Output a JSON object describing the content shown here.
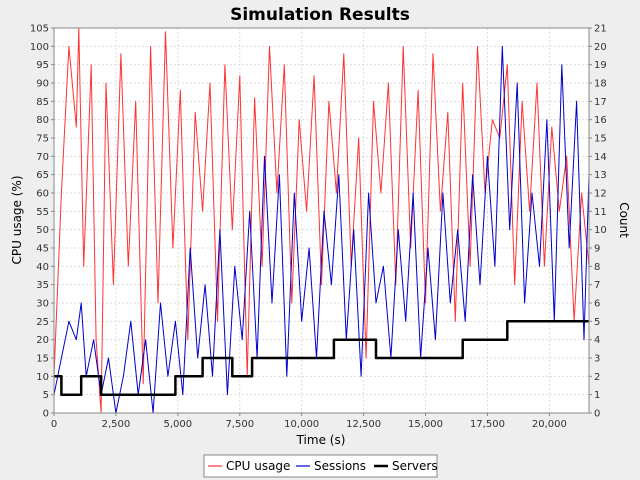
{
  "chart_data": {
    "type": "line",
    "title": "Simulation Results",
    "xlabel": "Time (s)",
    "ylabel": "CPU usage (%)",
    "y2label": "Count",
    "xlim": [
      0,
      21600
    ],
    "ylim": [
      0,
      105
    ],
    "y2lim": [
      0,
      21
    ],
    "x_ticks": [
      "0",
      "2,500",
      "5,000",
      "7,500",
      "10,000",
      "12,500",
      "15,000",
      "17,500",
      "20,000"
    ],
    "y_ticks": [
      "0",
      "5",
      "10",
      "15",
      "20",
      "25",
      "30",
      "35",
      "40",
      "45",
      "50",
      "55",
      "60",
      "65",
      "70",
      "75",
      "80",
      "85",
      "90",
      "95",
      "100",
      "105"
    ],
    "y2_ticks": [
      "0",
      "1",
      "2",
      "3",
      "4",
      "5",
      "6",
      "7",
      "8",
      "9",
      "10",
      "11",
      "12",
      "13",
      "14",
      "15",
      "16",
      "17",
      "18",
      "19",
      "20",
      "21"
    ],
    "legend_position": "bottom",
    "series": [
      {
        "name": "CPU usage",
        "axis": "left",
        "color": "#ff3333",
        "x": [
          0,
          300,
          600,
          900,
          1000,
          1200,
          1500,
          1700,
          1900,
          2100,
          2400,
          2700,
          3000,
          3300,
          3600,
          3900,
          4200,
          4500,
          4800,
          5100,
          5400,
          5700,
          6000,
          6300,
          6600,
          6900,
          7200,
          7500,
          7800,
          8100,
          8400,
          8700,
          9000,
          9300,
          9600,
          9900,
          10200,
          10500,
          10800,
          11100,
          11400,
          11700,
          12000,
          12300,
          12600,
          12900,
          13200,
          13500,
          13800,
          14100,
          14400,
          14700,
          15000,
          15300,
          15600,
          15900,
          16200,
          16500,
          16800,
          17100,
          17400,
          17700,
          18000,
          18300,
          18600,
          18900,
          19200,
          19500,
          19800,
          20100,
          20400,
          20700,
          21000,
          21300,
          21600
        ],
        "values": [
          10,
          60,
          100,
          78,
          105,
          40,
          95,
          20,
          0,
          90,
          35,
          98,
          40,
          85,
          8,
          100,
          30,
          104,
          45,
          88,
          20,
          82,
          55,
          90,
          25,
          95,
          50,
          92,
          10,
          86,
          40,
          100,
          60,
          95,
          30,
          80,
          55,
          92,
          35,
          85,
          60,
          98,
          40,
          75,
          15,
          85,
          60,
          90,
          35,
          100,
          45,
          88,
          30,
          98,
          55,
          82,
          25,
          90,
          40,
          100,
          60,
          80,
          75,
          95,
          35,
          85,
          55,
          90,
          40,
          78,
          55,
          70,
          25,
          60,
          40
        ]
      },
      {
        "name": "Sessions",
        "axis": "right",
        "color": "#0000cc",
        "x": [
          0,
          300,
          600,
          900,
          1100,
          1300,
          1600,
          1900,
          2200,
          2500,
          2800,
          3100,
          3400,
          3700,
          4000,
          4300,
          4600,
          4900,
          5200,
          5500,
          5800,
          6100,
          6400,
          6700,
          7000,
          7300,
          7600,
          7900,
          8200,
          8500,
          8800,
          9100,
          9400,
          9700,
          10000,
          10300,
          10600,
          10900,
          11200,
          11500,
          11800,
          12100,
          12400,
          12700,
          13000,
          13300,
          13600,
          13900,
          14200,
          14500,
          14800,
          15100,
          15400,
          15700,
          16000,
          16300,
          16600,
          16900,
          17200,
          17500,
          17800,
          18100,
          18400,
          18700,
          19000,
          19300,
          19600,
          19900,
          20200,
          20500,
          20800,
          21100,
          21400,
          21600
        ],
        "values": [
          1,
          3,
          5,
          4,
          6,
          2,
          4,
          1,
          3,
          0,
          2,
          5,
          1,
          4,
          0,
          6,
          2,
          5,
          1,
          9,
          3,
          7,
          2,
          10,
          1,
          8,
          4,
          11,
          3,
          14,
          6,
          13,
          2,
          12,
          5,
          9,
          3,
          11,
          7,
          13,
          4,
          10,
          2,
          12,
          6,
          8,
          3,
          10,
          5,
          12,
          3,
          9,
          4,
          12,
          6,
          10,
          5,
          13,
          7,
          14,
          8,
          20,
          10,
          18,
          6,
          12,
          8,
          16,
          5,
          19,
          9,
          17,
          4,
          13
        ]
      },
      {
        "name": "Servers",
        "axis": "right",
        "color": "#000000",
        "step": true,
        "x": [
          0,
          300,
          1100,
          1900,
          4900,
          6000,
          7200,
          8000,
          11300,
          13000,
          16500,
          18300,
          21600
        ],
        "values": [
          2,
          1,
          2,
          1,
          2,
          3,
          2,
          3,
          4,
          3,
          4,
          5,
          5
        ]
      }
    ]
  }
}
